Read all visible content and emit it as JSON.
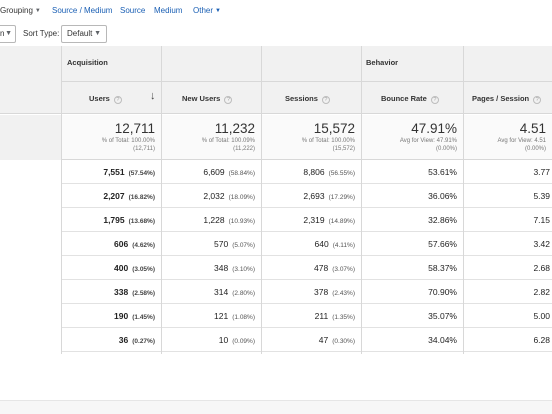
{
  "tabs": {
    "grouping": "Grouping",
    "source_medium": "Source / Medium",
    "source": "Source",
    "medium": "Medium",
    "other": "Other"
  },
  "controls": {
    "left_select_partial": "n",
    "sort_type_label": "Sort Type:",
    "sort_type_value": "Default"
  },
  "table": {
    "groups": {
      "acquisition": "Acquisition",
      "behavior": "Behavior"
    },
    "columns": {
      "users": "Users",
      "new_users": "New Users",
      "sessions": "Sessions",
      "bounce_rate": "Bounce Rate",
      "pages_session": "Pages / Session"
    },
    "totals": {
      "users": {
        "value": "12,711",
        "line1": "% of Total: 100.00%",
        "line2": "(12,711)"
      },
      "new_users": {
        "value": "11,232",
        "line1": "% of Total: 100.09%",
        "line2": "(11,222)"
      },
      "sessions": {
        "value": "15,572",
        "line1": "% of Total: 100.00%",
        "line2": "(15,572)"
      },
      "bounce_rate": {
        "value": "47.91%",
        "line1": "Avg for View: 47.91%",
        "line2": "(0.00%)"
      },
      "pages_session": {
        "value": "4.51",
        "line1": "Avg for View: 4.51",
        "line2": "(0.00%)"
      }
    },
    "rows": [
      {
        "users": "7,551",
        "users_pct": "(57.54%)",
        "new_users": "6,609",
        "new_users_pct": "(58.84%)",
        "sessions": "8,806",
        "sessions_pct": "(56.55%)",
        "bounce_rate": "53.61%",
        "pages_session": "3.77"
      },
      {
        "users": "2,207",
        "users_pct": "(16.82%)",
        "new_users": "2,032",
        "new_users_pct": "(18.09%)",
        "sessions": "2,693",
        "sessions_pct": "(17.29%)",
        "bounce_rate": "36.06%",
        "pages_session": "5.39"
      },
      {
        "users": "1,795",
        "users_pct": "(13.68%)",
        "new_users": "1,228",
        "new_users_pct": "(10.93%)",
        "sessions": "2,319",
        "sessions_pct": "(14.89%)",
        "bounce_rate": "32.86%",
        "pages_session": "7.15"
      },
      {
        "users": "606",
        "users_pct": "(4.62%)",
        "new_users": "570",
        "new_users_pct": "(5.07%)",
        "sessions": "640",
        "sessions_pct": "(4.11%)",
        "bounce_rate": "57.66%",
        "pages_session": "3.42"
      },
      {
        "users": "400",
        "users_pct": "(3.05%)",
        "new_users": "348",
        "new_users_pct": "(3.10%)",
        "sessions": "478",
        "sessions_pct": "(3.07%)",
        "bounce_rate": "58.37%",
        "pages_session": "2.68"
      },
      {
        "users": "338",
        "users_pct": "(2.58%)",
        "new_users": "314",
        "new_users_pct": "(2.80%)",
        "sessions": "378",
        "sessions_pct": "(2.43%)",
        "bounce_rate": "70.90%",
        "pages_session": "2.82"
      },
      {
        "users": "190",
        "users_pct": "(1.45%)",
        "new_users": "121",
        "new_users_pct": "(1.08%)",
        "sessions": "211",
        "sessions_pct": "(1.35%)",
        "bounce_rate": "35.07%",
        "pages_session": "5.00"
      },
      {
        "users": "36",
        "users_pct": "(0.27%)",
        "new_users": "10",
        "new_users_pct": "(0.09%)",
        "sessions": "47",
        "sessions_pct": "(0.30%)",
        "bounce_rate": "34.04%",
        "pages_session": "6.28"
      }
    ]
  },
  "icons": {
    "help": "question-circle-icon",
    "sort": "arrow-down-icon",
    "dropdown": "chevron-down-icon"
  },
  "colors": {
    "link": "#1a5fb4",
    "header_bg": "#f1f1f1"
  }
}
